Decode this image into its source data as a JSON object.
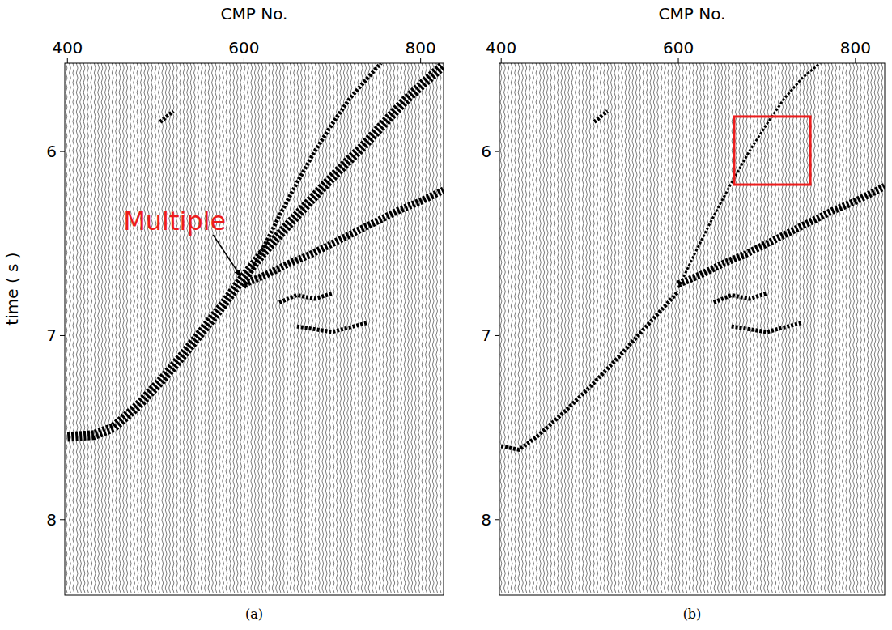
{
  "chart_data": [
    {
      "type": "line",
      "caption": "(a)",
      "x_label": "CMP No.",
      "y_label": "time ( s )",
      "xlim": [
        397,
        826
      ],
      "ylim": [
        5.52,
        8.41
      ],
      "xticks": [
        400,
        600,
        800
      ],
      "yticks": [
        6,
        7,
        8
      ],
      "color": "#000000",
      "series": [
        {
          "x": [
            400,
            430,
            452,
            480,
            507,
            530,
            552,
            575,
            598,
            620,
            644,
            667,
            690,
            712,
            735,
            758,
            781,
            803,
            826
          ],
          "values": [
            7.55,
            7.54,
            7.5,
            7.38,
            7.24,
            7.11,
            6.98,
            6.84,
            6.69,
            6.56,
            6.43,
            6.31,
            6.19,
            6.08,
            5.97,
            5.85,
            5.73,
            5.63,
            5.53
          ]
        },
        {
          "x": [
            600,
            625,
            650,
            675,
            700,
            725,
            750,
            775,
            800,
            826
          ],
          "values": [
            6.72,
            6.67,
            6.61,
            6.56,
            6.5,
            6.44,
            6.38,
            6.32,
            6.27,
            6.21
          ]
        },
        {
          "x": [
            600,
            620,
            640,
            660,
            680,
            700,
            720,
            740,
            755
          ],
          "values": [
            6.74,
            6.54,
            6.35,
            6.17,
            6.0,
            5.85,
            5.71,
            5.6,
            5.52
          ]
        },
        {
          "x": [
            505,
            520
          ],
          "values": [
            5.84,
            5.78
          ]
        },
        {
          "x": [
            640,
            660,
            680,
            700
          ],
          "values": [
            6.82,
            6.78,
            6.8,
            6.77
          ]
        },
        {
          "x": [
            660,
            700,
            740
          ],
          "values": [
            6.95,
            6.98,
            6.93
          ]
        }
      ],
      "annotations": [
        {
          "text": "Multiple",
          "x": 598,
          "y": 6.69
        }
      ]
    },
    {
      "type": "line",
      "caption": "(b)",
      "x_label": "CMP No.",
      "xlim": [
        398,
        833
      ],
      "ylim": [
        5.52,
        8.41
      ],
      "xticks": [
        400,
        600,
        800
      ],
      "yticks": [
        6,
        7,
        8
      ],
      "color": "#000000",
      "series": [
        {
          "x": [
            400,
            420,
            440,
            470,
            500,
            530,
            560,
            600
          ],
          "values": [
            7.6,
            7.62,
            7.55,
            7.42,
            7.28,
            7.13,
            6.97,
            6.76
          ]
        },
        {
          "x": [
            600,
            625,
            650,
            675,
            700,
            725,
            750,
            775,
            800,
            833
          ],
          "values": [
            6.72,
            6.67,
            6.61,
            6.56,
            6.5,
            6.44,
            6.38,
            6.32,
            6.27,
            6.19
          ]
        },
        {
          "x": [
            600,
            620,
            640,
            660,
            680,
            700,
            720,
            740,
            760
          ],
          "values": [
            6.74,
            6.54,
            6.35,
            6.17,
            6.0,
            5.85,
            5.71,
            5.6,
            5.52
          ]
        },
        {
          "x": [
            505,
            520
          ],
          "values": [
            5.84,
            5.78
          ]
        },
        {
          "x": [
            640,
            660,
            680,
            700
          ],
          "values": [
            6.82,
            6.78,
            6.8,
            6.77
          ]
        },
        {
          "x": [
            660,
            700,
            740
          ],
          "values": [
            6.95,
            6.98,
            6.93
          ]
        }
      ],
      "highlight_box": {
        "x": [
          663,
          749
        ],
        "y": [
          5.81,
          6.18
        ]
      }
    }
  ]
}
